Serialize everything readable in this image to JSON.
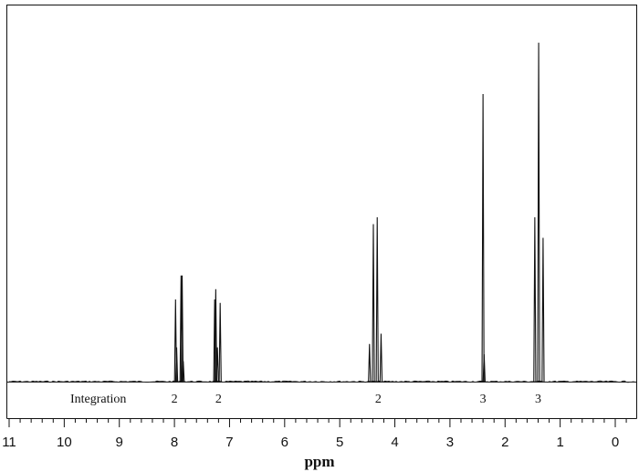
{
  "chart_data": {
    "type": "line",
    "xlabel": "ppm",
    "xlim": [
      11,
      -0.3
    ],
    "x_reversed": true,
    "ticks": [
      11,
      10,
      9,
      8,
      7,
      6,
      5,
      4,
      3,
      2,
      1,
      0
    ],
    "tick_labels": [
      "11",
      "10",
      "9",
      "8",
      "7",
      "6",
      "5",
      "4",
      "3",
      "2",
      "1",
      "0"
    ],
    "integration": {
      "label": "Integration",
      "values": [
        {
          "ppm": 8.0,
          "text": "2"
        },
        {
          "ppm": 7.2,
          "text": "2"
        },
        {
          "ppm": 4.3,
          "text": "2"
        },
        {
          "ppm": 2.4,
          "text": "3"
        },
        {
          "ppm": 1.4,
          "text": "3"
        }
      ]
    },
    "ymax": 1.0,
    "peaks": [
      {
        "ppm": 7.98,
        "height": 0.24
      },
      {
        "ppm": 7.96,
        "height": 0.1
      },
      {
        "ppm": 7.88,
        "height": 0.31
      },
      {
        "ppm": 7.86,
        "height": 0.31
      },
      {
        "ppm": 7.84,
        "height": 0.06
      },
      {
        "ppm": 7.27,
        "height": 0.24
      },
      {
        "ppm": 7.25,
        "height": 0.27
      },
      {
        "ppm": 7.22,
        "height": 0.1
      },
      {
        "ppm": 7.17,
        "height": 0.23
      },
      {
        "ppm": 4.46,
        "height": 0.11
      },
      {
        "ppm": 4.39,
        "height": 0.46
      },
      {
        "ppm": 4.32,
        "height": 0.48
      },
      {
        "ppm": 4.25,
        "height": 0.14
      },
      {
        "ppm": 2.4,
        "height": 0.84
      },
      {
        "ppm": 2.38,
        "height": 0.08
      },
      {
        "ppm": 1.46,
        "height": 0.48
      },
      {
        "ppm": 1.39,
        "height": 0.99
      },
      {
        "ppm": 1.31,
        "height": 0.42
      }
    ]
  }
}
